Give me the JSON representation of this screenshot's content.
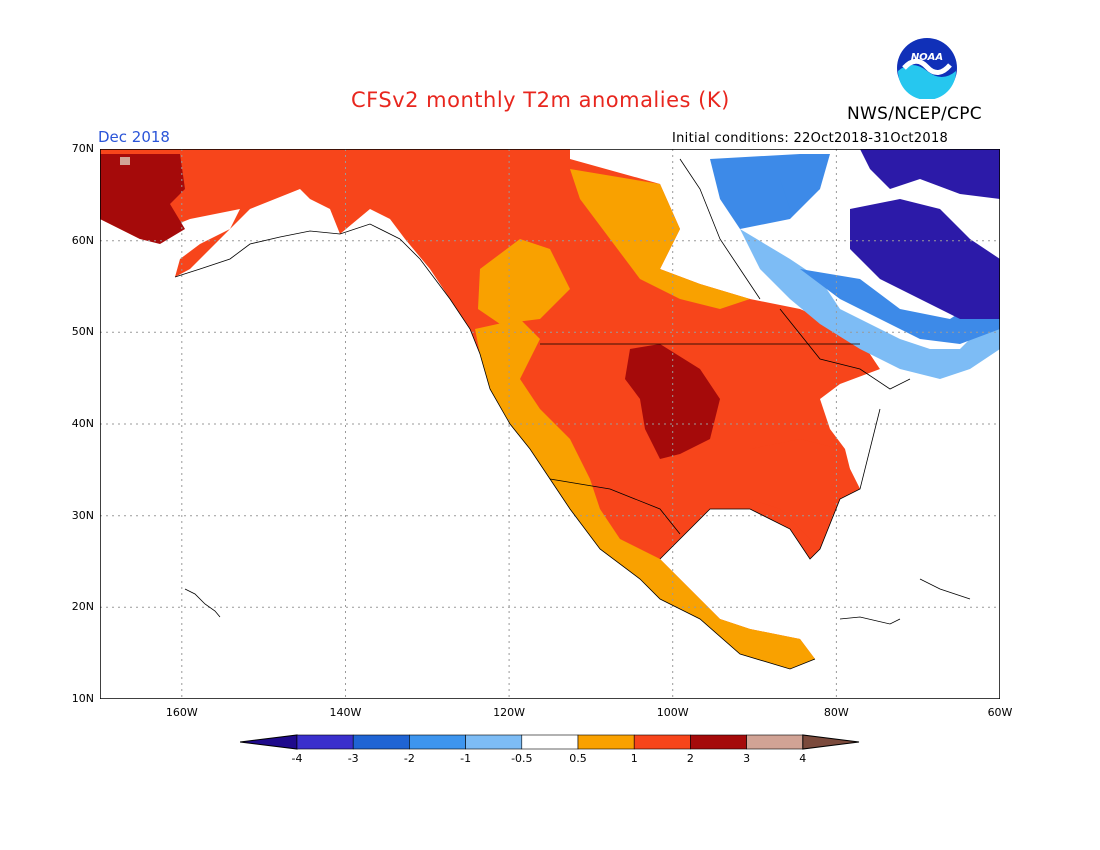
{
  "title": "CFSv2 monthly T2m anomalies (K)",
  "valid_month": "Dec 2018",
  "initial_conditions": "Initial conditions: 22Oct2018-31Oct2018",
  "agency": "NWS/NCEP/CPC",
  "logo_text": "NOAA",
  "colors": {
    "title": "#e8261e",
    "valid_month": "#2b55d8",
    "ocean": "#ffffff",
    "coast": "#000000",
    "grid": "#9a9a9a"
  },
  "map_extent": {
    "lon_min": -170,
    "lon_max": -60,
    "lat_min": 10,
    "lat_max": 70
  },
  "lat_labels": [
    {
      "lat": 70,
      "label": "70N"
    },
    {
      "lat": 60,
      "label": "60N"
    },
    {
      "lat": 50,
      "label": "50N"
    },
    {
      "lat": 40,
      "label": "40N"
    },
    {
      "lat": 30,
      "label": "30N"
    },
    {
      "lat": 20,
      "label": "20N"
    },
    {
      "lat": 10,
      "label": "10N"
    }
  ],
  "lon_labels": [
    {
      "lon": -160,
      "label": "160W"
    },
    {
      "lon": -140,
      "label": "140W"
    },
    {
      "lon": -120,
      "label": "120W"
    },
    {
      "lon": -100,
      "label": "100W"
    },
    {
      "lon": -80,
      "label": "80W"
    },
    {
      "lon": -60,
      "label": "60W"
    }
  ],
  "colorbar": {
    "left_arrow_color": "#1f0a8c",
    "right_arrow_color": "#7b4a3c",
    "colors": [
      "#3a2fcc",
      "#1f64d4",
      "#3d95ee",
      "#7dbcf5",
      "#ffffff",
      "#f9a100",
      "#f7451b",
      "#a50a0a",
      "#d1a395"
    ],
    "labels": [
      "-4",
      "-3",
      "-2",
      "-1",
      "-0.5",
      "0.5",
      "1",
      "2",
      "3",
      "4"
    ]
  },
  "anomaly_regions": [
    {
      "name": "eastern-canada-strong-cold",
      "class": "-3 to -4",
      "color": "#2c1aa8"
    },
    {
      "name": "hudson-region-cold",
      "class": "-1 to -2",
      "color": "#3d8ae8"
    },
    {
      "name": "great-lakes-cool",
      "class": "-0.5 to -1",
      "color": "#7dbcf5"
    },
    {
      "name": "alaska-west-canada-warm",
      "class": "1 to 2",
      "color": "#f7451b"
    },
    {
      "name": "alaska-west-coast-hot",
      "class": "2 to 3",
      "color": "#a50a0a"
    },
    {
      "name": "central-plains-hot",
      "class": "2 to 3",
      "color": "#a50a0a"
    },
    {
      "name": "mexico-west-warm",
      "class": "0.5 to 1",
      "color": "#f9a100"
    }
  ]
}
